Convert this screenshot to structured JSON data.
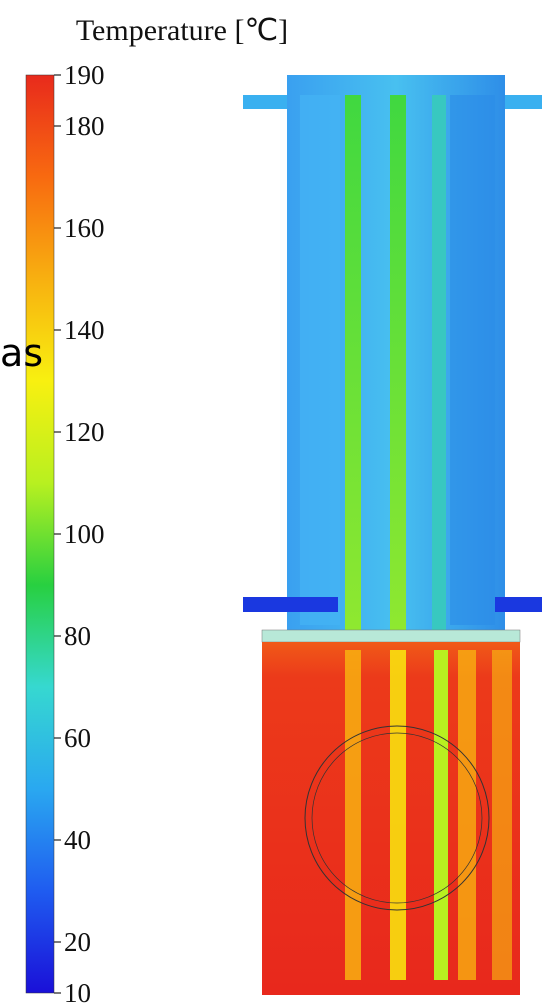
{
  "chart_data": {
    "type": "colorbar",
    "title": "Temperature [℃]",
    "ylim": [
      10,
      190
    ],
    "yticks": [
      10,
      20,
      40,
      60,
      80,
      100,
      120,
      140,
      160,
      180,
      190
    ],
    "colormap": [
      "#1a10d8",
      "#1f5cf0",
      "#2aa8f0",
      "#36d8d0",
      "#28d040",
      "#b8f020",
      "#f8f010",
      "#f8b010",
      "#f86a10",
      "#e82a1c"
    ]
  },
  "overlay_text": "as"
}
